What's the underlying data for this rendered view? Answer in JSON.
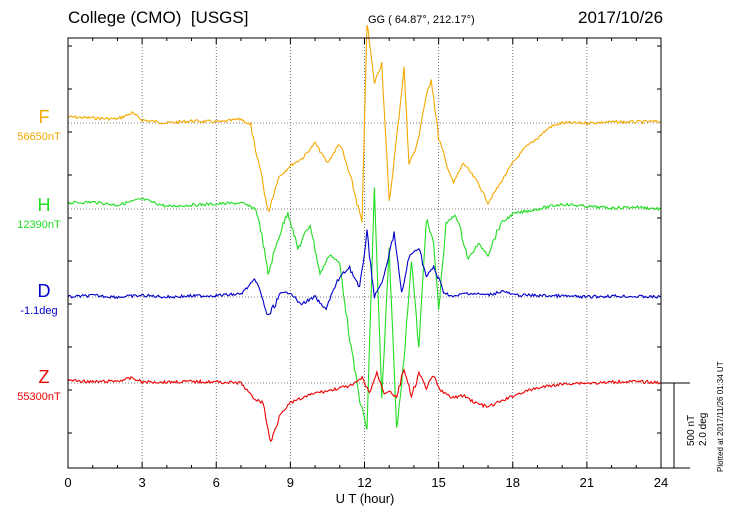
{
  "header": {
    "station": "College (CMO)",
    "source": "[USGS]",
    "coords": "GG ( 64.87°, 212.17°)",
    "date": "2017/10/26"
  },
  "footer": {
    "plotted": "Plotted at 2017/11/26 01:34 UT"
  },
  "scale": {
    "nt": "500 nT",
    "deg": "2.0 deg"
  },
  "chart_data": {
    "type": "line",
    "xlabel": "U T (hour)",
    "xlim": [
      0,
      24
    ],
    "xticks": [
      "0",
      "3",
      "6",
      "9",
      "12",
      "15",
      "18",
      "21",
      "24"
    ],
    "grid": true,
    "series": [
      {
        "name": "F",
        "baseline": "56650nT",
        "color": "#f5a800",
        "points": [
          [
            0,
            -12
          ],
          [
            1,
            -10
          ],
          [
            2,
            -8
          ],
          [
            2.6,
            -20
          ],
          [
            3,
            -6
          ],
          [
            4,
            0
          ],
          [
            5,
            -4
          ],
          [
            6.2,
            -2
          ],
          [
            7,
            -8
          ],
          [
            7.4,
            5
          ],
          [
            7.6,
            60
          ],
          [
            7.8,
            95
          ],
          [
            8.1,
            180
          ],
          [
            8.5,
            110
          ],
          [
            9,
            85
          ],
          [
            9.5,
            70
          ],
          [
            10,
            40
          ],
          [
            10.5,
            80
          ],
          [
            11,
            40
          ],
          [
            11.5,
            120
          ],
          [
            11.9,
            200
          ],
          [
            12.1,
            -200
          ],
          [
            12.4,
            -80
          ],
          [
            12.7,
            -120
          ],
          [
            13,
            160
          ],
          [
            13.3,
            30
          ],
          [
            13.6,
            -110
          ],
          [
            13.8,
            80
          ],
          [
            14.1,
            50
          ],
          [
            14.4,
            -30
          ],
          [
            14.7,
            -90
          ],
          [
            15,
            30
          ],
          [
            15.3,
            80
          ],
          [
            15.6,
            120
          ],
          [
            16,
            80
          ],
          [
            16.6,
            120
          ],
          [
            17,
            160
          ],
          [
            17.5,
            120
          ],
          [
            18,
            80
          ],
          [
            18.5,
            50
          ],
          [
            19,
            30
          ],
          [
            19.5,
            8
          ],
          [
            20,
            0
          ],
          [
            21,
            0
          ],
          [
            22,
            -2
          ],
          [
            23,
            -2
          ],
          [
            24,
            -3
          ]
        ]
      },
      {
        "name": "H",
        "baseline": "12390nT",
        "color": "#22dd22",
        "points": [
          [
            0,
            -12
          ],
          [
            1,
            -14
          ],
          [
            2,
            -8
          ],
          [
            3,
            -20
          ],
          [
            4,
            -5
          ],
          [
            5,
            -8
          ],
          [
            6,
            -10
          ],
          [
            7,
            -12
          ],
          [
            7.6,
            0
          ],
          [
            7.8,
            40
          ],
          [
            8.1,
            130
          ],
          [
            8.5,
            60
          ],
          [
            8.9,
            5
          ],
          [
            9.3,
            80
          ],
          [
            9.8,
            30
          ],
          [
            10.2,
            130
          ],
          [
            10.6,
            90
          ],
          [
            11.0,
            110
          ],
          [
            11.4,
            260
          ],
          [
            11.8,
            380
          ],
          [
            12.1,
            440
          ],
          [
            12.4,
            -40
          ],
          [
            12.7,
            380
          ],
          [
            13,
            80
          ],
          [
            13.3,
            440
          ],
          [
            13.6,
            300
          ],
          [
            13.9,
            100
          ],
          [
            14.2,
            280
          ],
          [
            14.5,
            20
          ],
          [
            14.8,
            70
          ],
          [
            15.0,
            200
          ],
          [
            15.3,
            30
          ],
          [
            15.7,
            10
          ],
          [
            16.2,
            100
          ],
          [
            16.6,
            70
          ],
          [
            17,
            90
          ],
          [
            17.5,
            30
          ],
          [
            18,
            10
          ],
          [
            19,
            0
          ],
          [
            20,
            -10
          ],
          [
            21,
            -5
          ],
          [
            22,
            -2
          ],
          [
            23,
            -4
          ],
          [
            24,
            0
          ]
        ]
      },
      {
        "name": "D",
        "baseline": "-1.1deg",
        "color": "#0000cc",
        "points": [
          [
            0,
            0
          ],
          [
            1,
            -3
          ],
          [
            2,
            0
          ],
          [
            3,
            -3
          ],
          [
            4,
            0
          ],
          [
            5,
            -2
          ],
          [
            6,
            -3
          ],
          [
            7,
            -6
          ],
          [
            7.6,
            -36
          ],
          [
            8.1,
            40
          ],
          [
            8.6,
            -6
          ],
          [
            9,
            -10
          ],
          [
            9.4,
            15
          ],
          [
            10,
            0
          ],
          [
            10.4,
            25
          ],
          [
            11,
            -40
          ],
          [
            11.4,
            -60
          ],
          [
            11.8,
            -15
          ],
          [
            12.1,
            -130
          ],
          [
            12.4,
            0
          ],
          [
            12.8,
            -40
          ],
          [
            13.2,
            -130
          ],
          [
            13.5,
            -5
          ],
          [
            13.8,
            -80
          ],
          [
            14.2,
            -100
          ],
          [
            14.5,
            -40
          ],
          [
            14.8,
            -60
          ],
          [
            15.2,
            -10
          ],
          [
            15.6,
            0
          ],
          [
            16.1,
            -8
          ],
          [
            17,
            -4
          ],
          [
            17.6,
            -12
          ],
          [
            18,
            -4
          ],
          [
            19,
            -3
          ],
          [
            20,
            -2
          ],
          [
            21,
            0
          ],
          [
            22,
            -2
          ],
          [
            23,
            -1
          ],
          [
            24,
            0
          ]
        ]
      },
      {
        "name": "Z",
        "baseline": "55300nT",
        "color": "#ee0000",
        "points": [
          [
            0,
            -6
          ],
          [
            1,
            -2
          ],
          [
            2,
            -4
          ],
          [
            2.6,
            -10
          ],
          [
            3,
            -2
          ],
          [
            4,
            -2
          ],
          [
            5,
            -3
          ],
          [
            6,
            -2
          ],
          [
            7,
            0
          ],
          [
            7.5,
            30
          ],
          [
            7.9,
            40
          ],
          [
            8.2,
            120
          ],
          [
            8.6,
            60
          ],
          [
            9,
            40
          ],
          [
            9.5,
            30
          ],
          [
            10,
            20
          ],
          [
            10.6,
            15
          ],
          [
            11.0,
            10
          ],
          [
            11.5,
            5
          ],
          [
            11.9,
            -10
          ],
          [
            12.2,
            20
          ],
          [
            12.5,
            -20
          ],
          [
            12.8,
            20
          ],
          [
            13.0,
            15
          ],
          [
            13.3,
            30
          ],
          [
            13.6,
            -30
          ],
          [
            13.9,
            30
          ],
          [
            14.2,
            -20
          ],
          [
            14.5,
            10
          ],
          [
            14.8,
            -15
          ],
          [
            15.0,
            10
          ],
          [
            15.5,
            30
          ],
          [
            16,
            25
          ],
          [
            16.5,
            40
          ],
          [
            17,
            48
          ],
          [
            17.6,
            35
          ],
          [
            18.3,
            20
          ],
          [
            19,
            10
          ],
          [
            19.7,
            4
          ],
          [
            20.5,
            0
          ],
          [
            21.5,
            0
          ],
          [
            22.5,
            -3
          ],
          [
            23.5,
            -2
          ],
          [
            24,
            0
          ]
        ]
      }
    ]
  }
}
